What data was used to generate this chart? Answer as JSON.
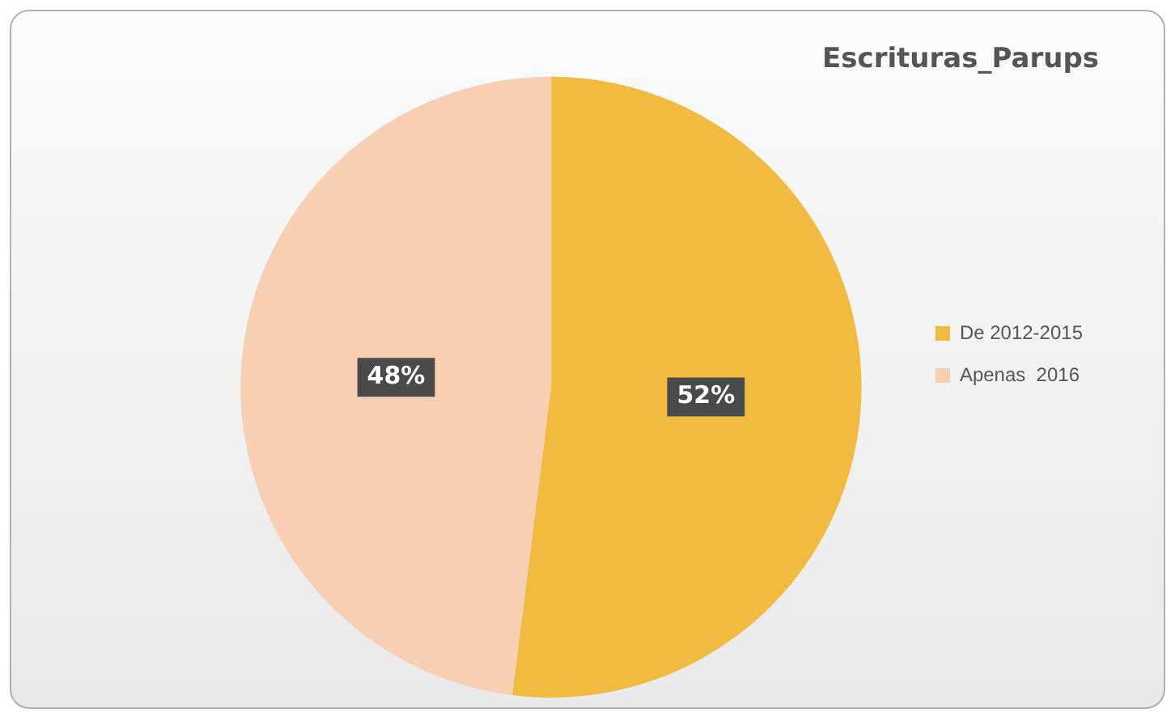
{
  "chart_data": {
    "type": "pie",
    "title": "Escrituras_Parups",
    "categories": [
      "De 2012-2015",
      "Apenas  2016"
    ],
    "values": [
      52,
      48
    ],
    "colors": [
      "#f1bb3f",
      "#f9cfb3"
    ],
    "value_labels": [
      "52%",
      "48%"
    ],
    "legend": "right"
  }
}
